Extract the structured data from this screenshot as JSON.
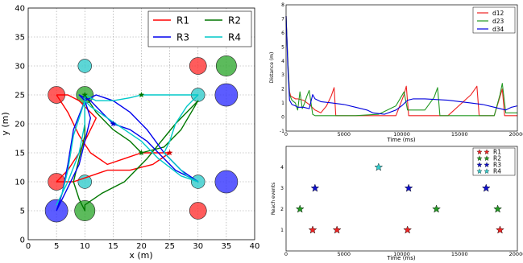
{
  "chart_data": [
    {
      "type": "line",
      "xlabel": "x (m)",
      "ylabel": "y (m)",
      "xlim": [
        0,
        40
      ],
      "ylim": [
        0,
        40
      ],
      "x_ticks": [
        0,
        5,
        10,
        15,
        20,
        25,
        30,
        35,
        40
      ],
      "y_ticks": [
        0,
        5,
        10,
        15,
        20,
        25,
        30,
        35,
        40
      ],
      "grid": true,
      "legend_position": "top-right",
      "legend_columns": 2,
      "series": [
        {
          "name": "R1",
          "color": "#ff0000",
          "path": [
            [
              5,
              25
            ],
            [
              7,
              22
            ],
            [
              9,
              18
            ],
            [
              11,
              15
            ],
            [
              14,
              13
            ],
            [
              17,
              14
            ],
            [
              20,
              15
            ],
            [
              23,
              15
            ],
            [
              25,
              15
            ],
            [
              22,
              13
            ],
            [
              18,
              12
            ],
            [
              14,
              12
            ],
            [
              11,
              11
            ],
            [
              8,
              10
            ],
            [
              6,
              10
            ],
            [
              5,
              10
            ],
            [
              6,
              11
            ],
            [
              7,
              12
            ],
            [
              9,
              15
            ],
            [
              11,
              19
            ],
            [
              12,
              21
            ],
            [
              11,
              22
            ],
            [
              9,
              24
            ],
            [
              7,
              25
            ],
            [
              5,
              25
            ]
          ]
        },
        {
          "name": "R2",
          "color": "#007700",
          "path": [
            [
              10,
              25
            ],
            [
              12,
              22
            ],
            [
              15,
              19
            ],
            [
              18,
              17
            ],
            [
              20,
              15
            ],
            [
              24,
              16
            ],
            [
              27,
              19
            ],
            [
              30,
              24
            ],
            [
              26,
              20
            ],
            [
              21,
              14
            ],
            [
              17,
              10
            ],
            [
              13,
              8
            ],
            [
              10,
              6
            ],
            [
              10,
              5
            ],
            [
              9,
              7
            ],
            [
              8,
              10
            ],
            [
              9,
              14
            ],
            [
              10,
              18
            ],
            [
              10,
              22
            ],
            [
              10,
              25
            ]
          ]
        },
        {
          "name": "R3",
          "color": "#0000ee",
          "path": [
            [
              5,
              5
            ],
            [
              7,
              9
            ],
            [
              9,
              13
            ],
            [
              10,
              17
            ],
            [
              11,
              21
            ],
            [
              10,
              24
            ],
            [
              9,
              25
            ],
            [
              11,
              24
            ],
            [
              13,
              22
            ],
            [
              15,
              20
            ],
            [
              18,
              19
            ],
            [
              21,
              17
            ],
            [
              24,
              14
            ],
            [
              26,
              12
            ],
            [
              28,
              11
            ],
            [
              30,
              10
            ],
            [
              27,
              12
            ],
            [
              24,
              15
            ],
            [
              21,
              19
            ],
            [
              18,
              22
            ],
            [
              15,
              24
            ],
            [
              12,
              25
            ],
            [
              10,
              24
            ],
            [
              8,
              19
            ],
            [
              7,
              13
            ],
            [
              6,
              8
            ],
            [
              5,
              5
            ]
          ]
        },
        {
          "name": "R4",
          "color": "#00c8c8",
          "path": [
            [
              10,
              25
            ],
            [
              12,
              24
            ],
            [
              15,
              24
            ],
            [
              18,
              24.5
            ],
            [
              20,
              25
            ],
            [
              23,
              25
            ],
            [
              26,
              25
            ],
            [
              29,
              25
            ],
            [
              30,
              25
            ],
            [
              28,
              23
            ],
            [
              26,
              20
            ],
            [
              25,
              17
            ],
            [
              24,
              15
            ],
            [
              26,
              13
            ],
            [
              28,
              11
            ],
            [
              30,
              10
            ],
            [
              27,
              11
            ],
            [
              23,
              14
            ],
            [
              20,
              17
            ],
            [
              17,
              19
            ],
            [
              14,
              21
            ],
            [
              11,
              23
            ],
            [
              10,
              24
            ],
            [
              8,
              18
            ],
            [
              7,
              12
            ],
            [
              6,
              8
            ],
            [
              5,
              6
            ],
            [
              7,
              10
            ],
            [
              9,
              15
            ],
            [
              10,
              20
            ],
            [
              10,
              25
            ]
          ]
        }
      ],
      "circles": [
        {
          "x": 5,
          "y": 25,
          "r": 1.5,
          "color": "#ff3333"
        },
        {
          "x": 10,
          "y": 25,
          "r": 1.5,
          "color": "#33aa33"
        },
        {
          "x": 10,
          "y": 30,
          "r": 1.2,
          "color": "#33cccc"
        },
        {
          "x": 30,
          "y": 30,
          "r": 1.5,
          "color": "#ff3333"
        },
        {
          "x": 35,
          "y": 30,
          "r": 1.8,
          "color": "#33aa33"
        },
        {
          "x": 30,
          "y": 25,
          "r": 1.2,
          "color": "#33cccc"
        },
        {
          "x": 35,
          "y": 25,
          "r": 2.0,
          "color": "#3333ff"
        },
        {
          "x": 5,
          "y": 10,
          "r": 1.5,
          "color": "#ff3333"
        },
        {
          "x": 10,
          "y": 10,
          "r": 1.2,
          "color": "#33cccc"
        },
        {
          "x": 5,
          "y": 5,
          "r": 2.0,
          "color": "#3333ff"
        },
        {
          "x": 10,
          "y": 5,
          "r": 1.8,
          "color": "#33aa33"
        },
        {
          "x": 30,
          "y": 10,
          "r": 1.2,
          "color": "#33cccc"
        },
        {
          "x": 35,
          "y": 10,
          "r": 2.0,
          "color": "#3333ff"
        },
        {
          "x": 30,
          "y": 5,
          "r": 1.5,
          "color": "#ff3333"
        }
      ],
      "star_markers": [
        {
          "x": 10,
          "y": 25,
          "color": "#007700"
        },
        {
          "x": 20,
          "y": 25,
          "color": "#007700"
        },
        {
          "x": 20,
          "y": 15,
          "color": "#007700"
        },
        {
          "x": 25,
          "y": 15,
          "color": "#cc0000"
        },
        {
          "x": 15,
          "y": 20,
          "color": "#0000cc"
        }
      ]
    },
    {
      "type": "line",
      "xlabel": "Time (ms)",
      "ylabel": "Distance (m)",
      "xlim": [
        0,
        20000
      ],
      "ylim": [
        -1,
        8
      ],
      "x_ticks": [
        0,
        5000,
        10000,
        15000,
        20000
      ],
      "y_ticks": [
        -1,
        0,
        1,
        2,
        3,
        4,
        5,
        6,
        7,
        8
      ],
      "grid": false,
      "legend_position": "top-right",
      "series": [
        {
          "name": "d12",
          "color": "#ee2222",
          "x": [
            0,
            150,
            300,
            400,
            600,
            800,
            1000,
            1500,
            2000,
            2500,
            3000,
            3500,
            3900,
            4150,
            4300,
            6000,
            8000,
            9500,
            10200,
            10400,
            10600,
            12000,
            14000,
            16000,
            16500,
            16700,
            18000,
            18700,
            18900,
            20000
          ],
          "y": [
            7.2,
            4.0,
            1.8,
            1.5,
            1.4,
            1.3,
            1.3,
            1.2,
            0.9,
            0.5,
            0.3,
            0.8,
            1.5,
            2.1,
            0.1,
            0.1,
            0.1,
            0.1,
            1.6,
            2.2,
            0.1,
            0.1,
            0.1,
            1.6,
            2.2,
            0.1,
            0.1,
            2.0,
            0.1,
            0.1
          ]
        },
        {
          "name": "d23",
          "color": "#229922",
          "x": [
            0,
            150,
            300,
            500,
            800,
            1000,
            1200,
            1400,
            1600,
            1800,
            2000,
            2300,
            2500,
            2700,
            4000,
            6000,
            8000,
            9500,
            10200,
            10500,
            12000,
            12800,
            13100,
            13300,
            15000,
            18000,
            18500,
            18700,
            19000,
            20000
          ],
          "y": [
            7.2,
            4.0,
            1.6,
            1.2,
            1.0,
            0.5,
            1.8,
            0.6,
            1.0,
            1.5,
            1.9,
            0.2,
            0.1,
            0.1,
            0.1,
            0.1,
            0.2,
            0.8,
            1.8,
            0.5,
            0.5,
            1.4,
            2.1,
            0.1,
            0.1,
            0.1,
            1.6,
            2.4,
            0.3,
            0.3
          ]
        },
        {
          "name": "d34",
          "color": "#0000dd",
          "x": [
            0,
            150,
            300,
            500,
            800,
            1000,
            1500,
            2000,
            2300,
            2500,
            3000,
            4000,
            5000,
            6000,
            7000,
            7500,
            8500,
            9500,
            10000,
            10500,
            11000,
            12000,
            14000,
            16000,
            17000,
            18000,
            19000,
            19500,
            20000
          ],
          "y": [
            7.2,
            3.5,
            1.2,
            0.9,
            0.8,
            0.7,
            0.7,
            0.6,
            1.6,
            1.3,
            1.1,
            1.0,
            0.9,
            0.7,
            0.5,
            0.3,
            0.2,
            0.5,
            0.8,
            1.2,
            1.3,
            1.3,
            1.2,
            1.0,
            0.9,
            0.7,
            0.5,
            0.7,
            0.8
          ]
        }
      ]
    },
    {
      "type": "scatter",
      "xlabel": "Time (ms)",
      "ylabel": "Reach events",
      "xlim": [
        0,
        20000
      ],
      "ylim": [
        0,
        5
      ],
      "x_ticks": [
        0,
        5000,
        10000,
        15000,
        20000
      ],
      "y_ticks": [
        1,
        2,
        3,
        4
      ],
      "grid": false,
      "legend_position": "top-right",
      "series": [
        {
          "name": "R1",
          "color": "#ee2222",
          "x": [
            2300,
            4400,
            10500,
            18500
          ],
          "y": [
            1,
            1,
            1,
            1
          ]
        },
        {
          "name": "R2",
          "color": "#229922",
          "x": [
            1200,
            13000,
            18300
          ],
          "y": [
            2,
            2,
            2
          ]
        },
        {
          "name": "R3",
          "color": "#1111cc",
          "x": [
            2500,
            10600,
            17300
          ],
          "y": [
            3,
            3,
            3
          ]
        },
        {
          "name": "R4",
          "color": "#33cccc",
          "x": [
            8000,
            16500
          ],
          "y": [
            4,
            4
          ]
        }
      ]
    }
  ]
}
